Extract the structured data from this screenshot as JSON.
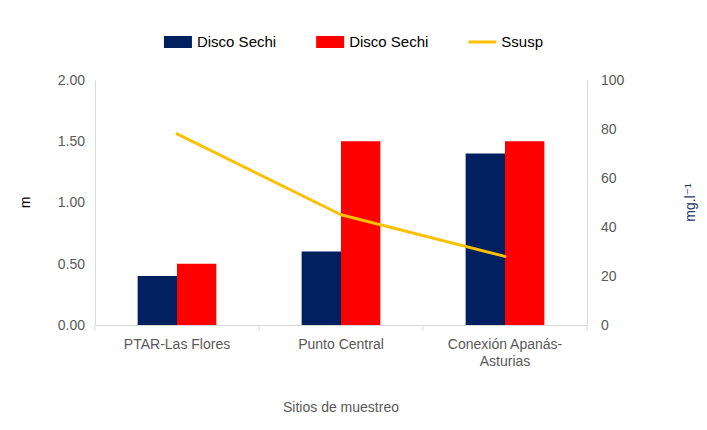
{
  "chart_data": {
    "type": "bar",
    "x_label": "Sitios de muestreo",
    "y_label": "m",
    "y2_label": "mg.l⁻¹",
    "categories": [
      "PTAR-Las Flores",
      "Punto Central",
      "Conexión Apanás-Asturias"
    ],
    "series": [
      {
        "name": "Disco Sechi",
        "type": "bar",
        "color": "#002060",
        "values": [
          0.4,
          0.6,
          1.4
        ]
      },
      {
        "name": "Disco Sechi",
        "type": "bar",
        "color": "#ff0000",
        "values": [
          0.5,
          1.5,
          1.5
        ]
      },
      {
        "name": "Ssusp",
        "type": "line",
        "axis": "y2",
        "color": "#ffc000",
        "values": [
          78,
          45,
          28
        ]
      }
    ],
    "ylim": [
      0,
      2
    ],
    "yticks": [
      {
        "value": 0,
        "label": "0.00"
      },
      {
        "value": 0.5,
        "label": "0.50"
      },
      {
        "value": 1,
        "label": "1.00"
      },
      {
        "value": 1.5,
        "label": "1.50"
      },
      {
        "value": 2,
        "label": "2.00"
      }
    ],
    "y2lim": [
      0,
      100
    ],
    "y2ticks": [
      0,
      20,
      40,
      60,
      80,
      100
    ],
    "grid": false,
    "legend": "top"
  }
}
